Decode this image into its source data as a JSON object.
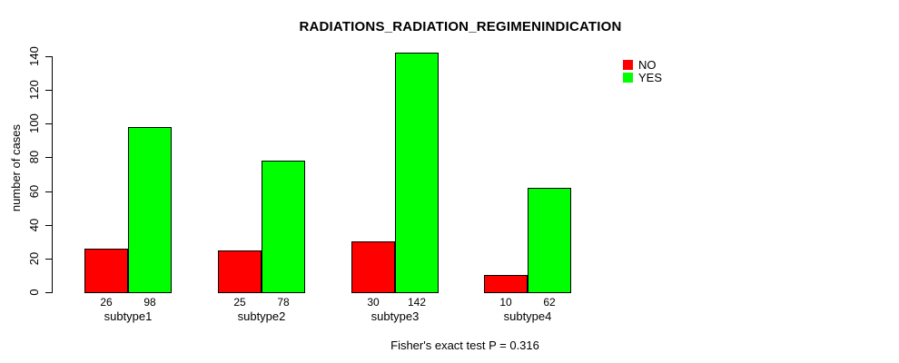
{
  "chart_data": {
    "type": "bar",
    "title": "RADIATIONS_RADIATION_REGIMENINDICATION",
    "ylabel": "number of cases",
    "xlabel": "",
    "categories": [
      "subtype1",
      "subtype2",
      "subtype3",
      "subtype4"
    ],
    "series": [
      {
        "name": "NO",
        "color": "#ff0000",
        "values": [
          26,
          25,
          30,
          10
        ]
      },
      {
        "name": "YES",
        "color": "#00ff00",
        "values": [
          98,
          78,
          142,
          62
        ]
      }
    ],
    "bar_value_labels": [
      [
        "26",
        "98"
      ],
      [
        "25",
        "78"
      ],
      [
        "30",
        "142"
      ],
      [
        "10",
        "62"
      ]
    ],
    "yticks": [
      0,
      20,
      40,
      60,
      80,
      100,
      120,
      140
    ],
    "ylim": [
      0,
      145
    ],
    "grid": false,
    "legend_position": "top-right",
    "annotation": "Fisher's exact test P = 0.316"
  }
}
